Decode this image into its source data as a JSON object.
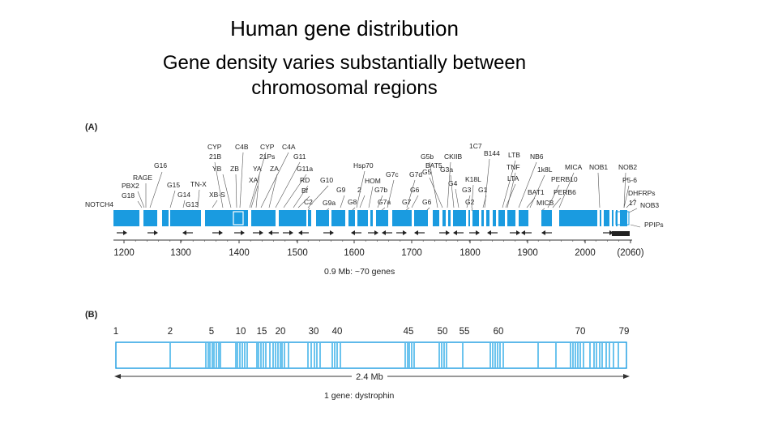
{
  "slide": {
    "title": "Human gene distribution",
    "subtitle_line1": "Gene density varies substantially between",
    "subtitle_line2": "chromosomal regions"
  },
  "panel_a": {
    "label": "(A)",
    "gene_labels": [
      "1C7",
      "CYP",
      "C4B",
      "CYP",
      "C4A",
      "21B",
      "21Ps",
      "G11",
      "G16",
      "G5b",
      "CKIIB",
      "B144",
      "LTB",
      "NB6",
      "BAT5",
      "YB",
      "ZB",
      "YA",
      "ZA",
      "G11a",
      "Hsp70",
      "G5",
      "G3a",
      "TNF",
      "1k8L",
      "MICA",
      "NOB1",
      "NOB2",
      "RAGE",
      "XA",
      "RD",
      "G10",
      "G7c",
      "G7d",
      "K18L",
      "LTA",
      "PERB10",
      "P5-6",
      "PBX2",
      "G15",
      "TN-X",
      "Bf",
      "HOM",
      "G4",
      "G18",
      "G14",
      "XB-S",
      "G9",
      "2",
      "G7b",
      "G6",
      "G3",
      "G1",
      "BAT1",
      "PERB6",
      "DHFRPs",
      "NOTCH4",
      "G13",
      "C2",
      "G9a",
      "G8",
      "G7a",
      "G7",
      "G6",
      "G2",
      "MICB",
      "17",
      "NOB3",
      "PPIPs"
    ],
    "axis_ticks": [
      "1200",
      "1300",
      "1400",
      "1500",
      "1600",
      "1700",
      "1800",
      "1900",
      "2000",
      "(2060)"
    ],
    "scale_note": "0.9 Mb: ~70 genes",
    "fill_color": "#1a9be0"
  },
  "panel_b": {
    "label": "(B)",
    "exon_numbers": [
      "1",
      "2",
      "5",
      "10",
      "15",
      "20",
      "30",
      "40",
      "45",
      "50",
      "55",
      "60",
      "70",
      "79"
    ],
    "length_label": "2.4 Mb",
    "gene_note": "1 gene: dystrophin",
    "line_color": "#6cc4ee"
  }
}
